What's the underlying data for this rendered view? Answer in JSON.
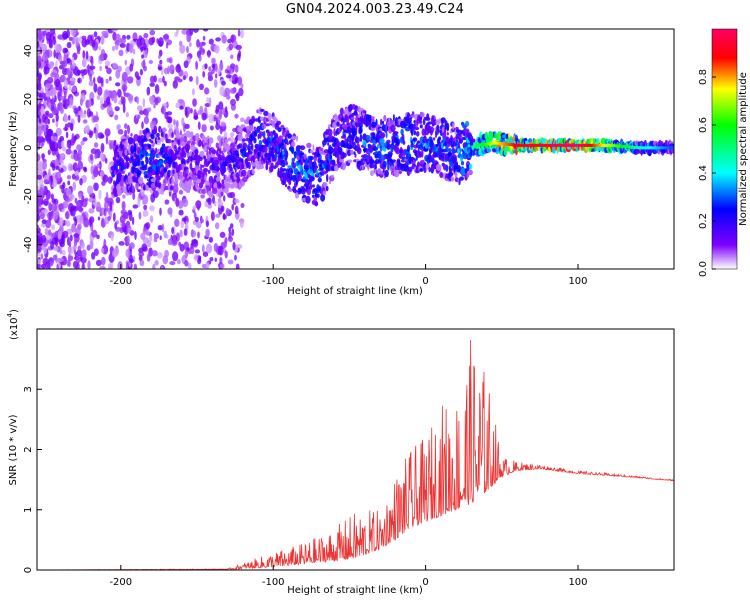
{
  "title": "GN04.2024.003.23.49.C24",
  "chart_data": [
    {
      "type": "heatmap",
      "xlabel": "Height of straight line (km)",
      "ylabel": "Frequency (Hz)",
      "xlim": [
        -255,
        163
      ],
      "ylim": [
        -50,
        49
      ],
      "x_ticks": [
        -200,
        -100,
        0,
        100
      ],
      "y_ticks": [
        -40,
        -20,
        0,
        20,
        40
      ],
      "colorbar": {
        "label": "Normalized spectral amplitude",
        "range": [
          0,
          1
        ],
        "ticks": [
          0.0,
          0.2,
          0.4,
          0.6,
          0.8
        ]
      },
      "signal_track": [
        {
          "x": -205,
          "f": -9,
          "a": 0.25
        },
        {
          "x": -190,
          "f": -6,
          "a": 0.3
        },
        {
          "x": -178,
          "f": -4,
          "a": 0.35
        },
        {
          "x": -160,
          "f": -5,
          "a": 0.2
        },
        {
          "x": -135,
          "f": -8,
          "a": 0.22
        },
        {
          "x": -120,
          "f": -3,
          "a": 0.25
        },
        {
          "x": -110,
          "f": 4,
          "a": 0.3
        },
        {
          "x": -100,
          "f": 2,
          "a": 0.3
        },
        {
          "x": -90,
          "f": -5,
          "a": 0.35
        },
        {
          "x": -80,
          "f": -10,
          "a": 0.35
        },
        {
          "x": -70,
          "f": -12,
          "a": 0.35
        },
        {
          "x": -60,
          "f": 1,
          "a": 0.3
        },
        {
          "x": -50,
          "f": 6,
          "a": 0.3
        },
        {
          "x": -40,
          "f": 3,
          "a": 0.35
        },
        {
          "x": -30,
          "f": 0,
          "a": 0.35
        },
        {
          "x": -20,
          "f": 1,
          "a": 0.35
        },
        {
          "x": -10,
          "f": 2,
          "a": 0.35
        },
        {
          "x": 0,
          "f": 2,
          "a": 0.35
        },
        {
          "x": 10,
          "f": 0,
          "a": 0.35
        },
        {
          "x": 20,
          "f": -3,
          "a": 0.35
        },
        {
          "x": 32,
          "f": 1,
          "a": 0.5
        },
        {
          "x": 45,
          "f": 2,
          "a": 0.75
        },
        {
          "x": 60,
          "f": 1,
          "a": 0.9
        },
        {
          "x": 80,
          "f": 1,
          "a": 0.95
        },
        {
          "x": 100,
          "f": 1,
          "a": 1.0
        },
        {
          "x": 120,
          "f": 1,
          "a": 0.7
        },
        {
          "x": 140,
          "f": 0,
          "a": 0.45
        },
        {
          "x": 160,
          "f": 0,
          "a": 0.3
        }
      ]
    },
    {
      "type": "line",
      "xlabel": "Height of straight line (km)",
      "ylabel": "SNR (10 * v/v)",
      "y_multiplier": "(x10",
      "y_multiplier_exp": "4",
      "y_multiplier_close": ")",
      "xlim": [
        -255,
        163
      ],
      "ylim": [
        0,
        4
      ],
      "x_ticks": [
        -200,
        -100,
        0,
        100
      ],
      "y_ticks": [
        0,
        1,
        2,
        3
      ],
      "color": "#ee3333",
      "envelope": [
        {
          "x": -255,
          "base": 0.0,
          "peak": 0.0
        },
        {
          "x": -130,
          "base": 0.01,
          "peak": 0.02
        },
        {
          "x": -100,
          "base": 0.05,
          "peak": 0.3
        },
        {
          "x": -80,
          "base": 0.1,
          "peak": 0.45
        },
        {
          "x": -60,
          "base": 0.15,
          "peak": 0.7
        },
        {
          "x": -45,
          "base": 0.2,
          "peak": 1.0
        },
        {
          "x": -30,
          "base": 0.35,
          "peak": 1.0
        },
        {
          "x": -20,
          "base": 0.5,
          "peak": 1.6
        },
        {
          "x": -10,
          "base": 0.7,
          "peak": 2.0
        },
        {
          "x": 0,
          "base": 0.8,
          "peak": 2.2
        },
        {
          "x": 10,
          "base": 0.9,
          "peak": 2.8
        },
        {
          "x": 20,
          "base": 1.0,
          "peak": 2.9
        },
        {
          "x": 30,
          "base": 1.1,
          "peak": 3.9
        },
        {
          "x": 40,
          "base": 1.3,
          "peak": 3.3
        },
        {
          "x": 50,
          "base": 1.55,
          "peak": 1.9
        },
        {
          "x": 60,
          "base": 1.65,
          "peak": 1.8
        },
        {
          "x": 75,
          "base": 1.68,
          "peak": 1.75
        },
        {
          "x": 100,
          "base": 1.6,
          "peak": 1.65
        },
        {
          "x": 130,
          "base": 1.55,
          "peak": 1.58
        },
        {
          "x": 163,
          "base": 1.48,
          "peak": 1.5
        }
      ]
    }
  ]
}
